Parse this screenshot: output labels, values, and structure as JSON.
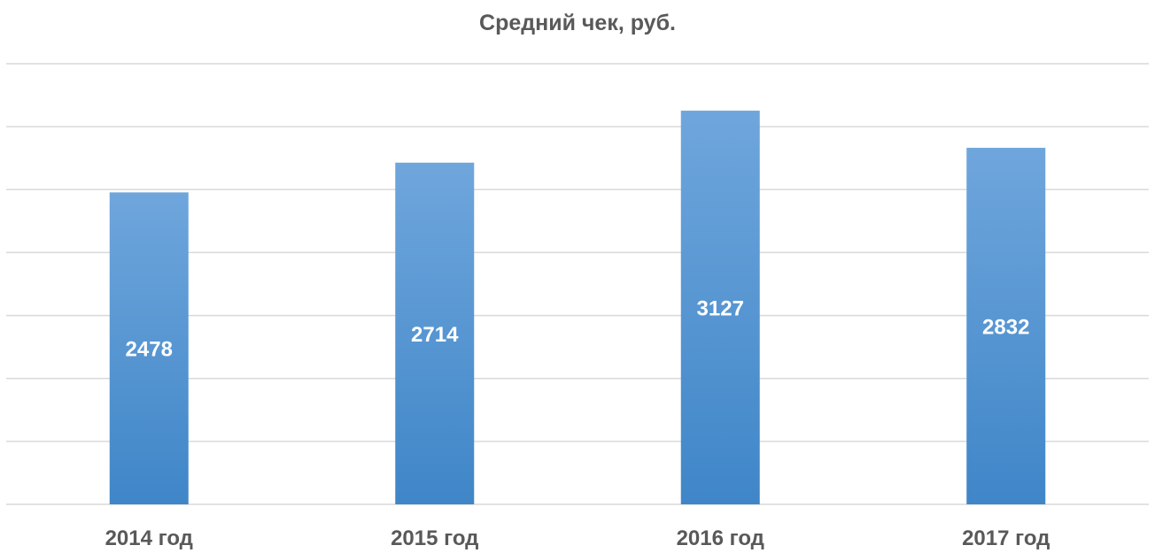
{
  "chart_data": {
    "type": "bar",
    "title": "Средний чек, руб.",
    "categories": [
      "2014 год",
      "2015 год",
      "2016 год",
      "2017 год"
    ],
    "values": [
      2478,
      2714,
      3127,
      2832
    ],
    "xlabel": "",
    "ylabel": "",
    "ylim": [
      0,
      3500
    ],
    "ytick_step": 500,
    "grid": true,
    "y_axis_labels_shown": false,
    "data_labels": "inside",
    "colors": {
      "bar_top": "#6fa6dc",
      "bar_bottom": "#3f86c8",
      "grid": "#d9d9d9",
      "label": "#ffffff",
      "text": "#595959"
    }
  }
}
